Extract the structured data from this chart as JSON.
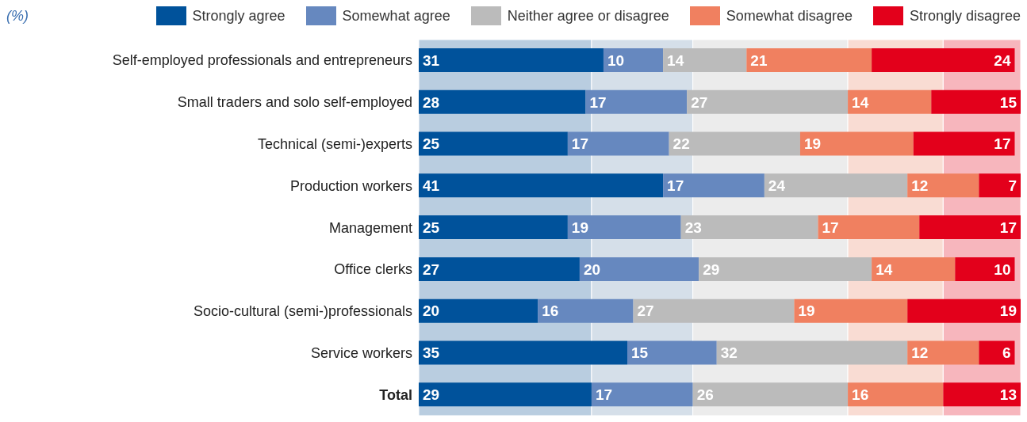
{
  "chart_data": {
    "type": "bar",
    "orientation": "horizontal",
    "stacked": true,
    "data_labels": true,
    "legend": "top",
    "grid": false,
    "tick_labels": "y",
    "annotations": [
      "(%)"
    ],
    "xlim": [
      0,
      101
    ],
    "categories": [
      "Self-employed professionals and entrepreneurs",
      "Small traders and solo self-employed",
      "Technical (semi-)experts",
      "Production workers",
      "Management",
      "Office clerks",
      "Socio-cultural (semi-)professionals",
      "Service workers",
      "Total"
    ],
    "series": [
      {
        "name": "Strongly agree",
        "color": "#00529b",
        "values": [
          31,
          28,
          25,
          41,
          25,
          27,
          20,
          35,
          29
        ]
      },
      {
        "name": "Somewhat agree",
        "color": "#6688bf",
        "values": [
          10,
          17,
          17,
          17,
          19,
          20,
          16,
          15,
          17
        ]
      },
      {
        "name": "Neither agree or disagree",
        "color": "#bbbbbb",
        "values": [
          14,
          27,
          22,
          24,
          23,
          29,
          27,
          32,
          26
        ]
      },
      {
        "name": "Somewhat disagree",
        "color": "#f08060",
        "values": [
          21,
          14,
          19,
          12,
          17,
          14,
          19,
          12,
          16
        ]
      },
      {
        "name": "Strongly disagree",
        "color": "#e3001b",
        "values": [
          24,
          15,
          17,
          7,
          17,
          10,
          19,
          6,
          13
        ]
      }
    ],
    "bands": [
      {
        "axis": "x",
        "from": 0,
        "to": 29,
        "color": "#b9cde0"
      },
      {
        "axis": "x",
        "from": 29,
        "to": 46,
        "color": "#d5dfe9"
      },
      {
        "axis": "x",
        "from": 46,
        "to": 72,
        "color": "#ececec"
      },
      {
        "axis": "x",
        "from": 72,
        "to": 88,
        "color": "#f9dcd3"
      },
      {
        "axis": "x",
        "from": 88,
        "to": 101,
        "color": "#f7b6bd"
      }
    ]
  }
}
